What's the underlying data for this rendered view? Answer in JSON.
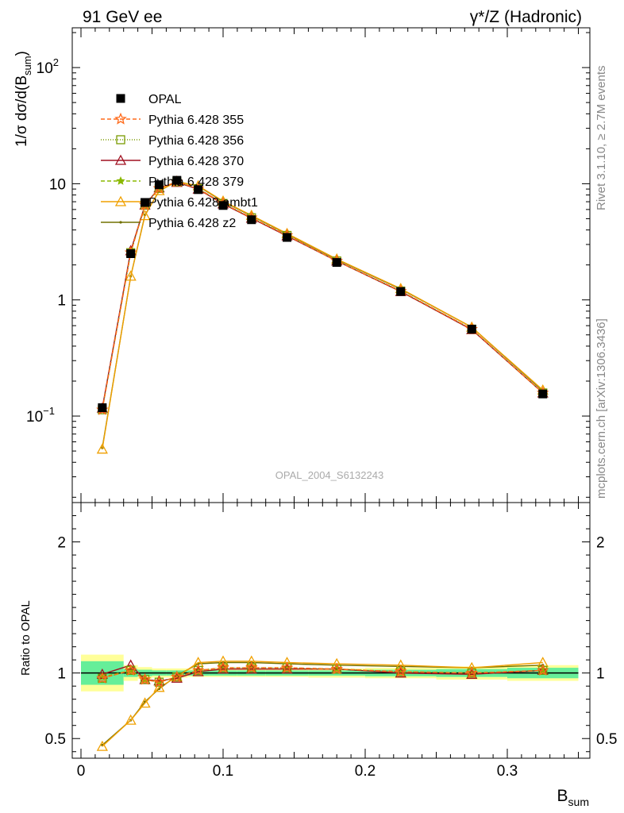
{
  "header": {
    "left_title": "91 GeV ee",
    "right_title": "γ*/Z (Hadronic)"
  },
  "side_labels": {
    "rivet": "Rivet 3.1.10, ≥ 2.7M events",
    "mcplots": "mcplots.cern.ch [arXiv:1306.3436]"
  },
  "watermark": "OPAL_2004_S6132243",
  "axes": {
    "top_ylabel_main": "1/σ dσ/d(B",
    "top_ylabel_sub": "sum",
    "top_ylabel_close": ")",
    "bottom_ylabel": "Ratio to OPAL",
    "xlabel_main": "B",
    "xlabel_sub": "sum",
    "top_ticks": [
      {
        "value": 100,
        "text": "10",
        "sup": "2"
      },
      {
        "value": 10,
        "text": "10",
        "sup": ""
      },
      {
        "value": 1,
        "text": "1",
        "sup": ""
      },
      {
        "value": 0.1,
        "text": "10",
        "sup": "−1"
      }
    ],
    "ratio_ticks": [
      {
        "value": 2,
        "text": "2"
      },
      {
        "value": 1,
        "text": "1"
      },
      {
        "value": 0.5,
        "text": "0.5"
      }
    ],
    "x_ticks": [
      {
        "value": 0,
        "text": "0"
      },
      {
        "value": 0.1,
        "text": "0.1"
      },
      {
        "value": 0.2,
        "text": "0.2"
      },
      {
        "value": 0.3,
        "text": "0.3"
      }
    ]
  },
  "legend": [
    {
      "label": "OPAL",
      "color": "#000000",
      "marker": "square-filled",
      "dash": "none"
    },
    {
      "label": "Pythia 6.428 355",
      "color": "#ff6a1a",
      "marker": "star-open",
      "dash": "5,3"
    },
    {
      "label": "Pythia 6.428 356",
      "color": "#7a9a00",
      "marker": "square-open",
      "dash": "1,2"
    },
    {
      "label": "Pythia 6.428 370",
      "color": "#a01020",
      "marker": "triangle-open",
      "dash": "none"
    },
    {
      "label": "Pythia 6.428 379",
      "color": "#8ab800",
      "marker": "star-filled",
      "dash": "5,3"
    },
    {
      "label": "Pythia 6.428 ambt1",
      "color": "#f0a000",
      "marker": "triangle-open",
      "dash": "none"
    },
    {
      "label": "Pythia 6.428 z2",
      "color": "#707000",
      "marker": "dot",
      "dash": "none"
    }
  ],
  "chart_data": {
    "type": "line",
    "x_label": "B_sum",
    "y_label": "1/σ dσ/d(B_sum)",
    "y_scale": "log",
    "xlim": [
      0,
      0.36
    ],
    "ylim": [
      0.018,
      220
    ],
    "ratio_ylim": [
      0.35,
      2.3
    ],
    "x": [
      0.015,
      0.035,
      0.045,
      0.055,
      0.0675,
      0.0825,
      0.1,
      0.12,
      0.145,
      0.18,
      0.225,
      0.275,
      0.325
    ],
    "bin_edges": [
      0,
      0.03,
      0.04,
      0.05,
      0.06,
      0.075,
      0.09,
      0.11,
      0.13,
      0.16,
      0.2,
      0.25,
      0.3,
      0.35
    ],
    "data_series": {
      "name": "OPAL",
      "values": [
        0.118,
        2.5,
        6.9,
        9.8,
        10.7,
        8.9,
        6.5,
        4.9,
        3.45,
        2.1,
        1.18,
        0.56,
        0.155
      ]
    },
    "ratio_bands": {
      "inner": [
        0.09,
        0.03,
        0.025,
        0.02,
        0.02,
        0.02,
        0.02,
        0.02,
        0.02,
        0.02,
        0.025,
        0.03,
        0.04
      ],
      "outer": [
        0.14,
        0.06,
        0.045,
        0.035,
        0.035,
        0.03,
        0.03,
        0.03,
        0.03,
        0.035,
        0.04,
        0.05,
        0.06
      ]
    },
    "ratio_series": [
      {
        "name": "Pythia 6.428 355",
        "values": [
          0.96,
          1.02,
          0.95,
          0.93,
          0.97,
          1.02,
          1.04,
          1.04,
          1.04,
          1.03,
          1.01,
          1.0,
          1.02
        ]
      },
      {
        "name": "Pythia 6.428 356",
        "values": [
          0.96,
          1.02,
          0.95,
          0.93,
          0.97,
          1.02,
          1.04,
          1.04,
          1.04,
          1.03,
          1.01,
          1.0,
          1.02
        ]
      },
      {
        "name": "Pythia 6.428 370",
        "values": [
          0.99,
          1.06,
          0.95,
          0.94,
          0.96,
          1.01,
          1.03,
          1.03,
          1.03,
          1.03,
          1.0,
          0.99,
          1.02
        ]
      },
      {
        "name": "Pythia 6.428 379",
        "values": [
          0.97,
          1.02,
          0.95,
          0.93,
          0.97,
          1.02,
          1.04,
          1.04,
          1.04,
          1.03,
          1.01,
          1.0,
          1.02
        ]
      },
      {
        "name": "Pythia 6.428 ambt1",
        "values": [
          0.44,
          0.64,
          0.77,
          0.89,
          0.97,
          1.08,
          1.09,
          1.09,
          1.08,
          1.07,
          1.06,
          1.04,
          1.08
        ]
      },
      {
        "name": "Pythia 6.428 z2",
        "values": [
          0.45,
          0.64,
          0.78,
          0.88,
          0.98,
          1.07,
          1.08,
          1.08,
          1.07,
          1.06,
          1.05,
          1.04,
          1.06
        ]
      }
    ]
  }
}
